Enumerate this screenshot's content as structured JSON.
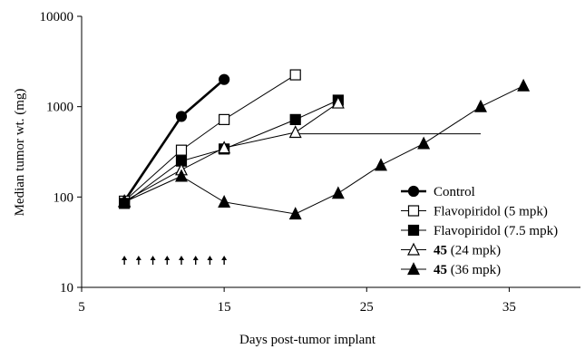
{
  "chart_data": {
    "type": "line",
    "title": "",
    "xlabel": "Days post-tumor implant",
    "ylabel": "Median tumor wt. (mg)",
    "xlim": [
      5,
      40
    ],
    "ylim": [
      10,
      10000
    ],
    "yscale": "log",
    "x_ticks": [
      "5",
      "15",
      "25",
      "35"
    ],
    "y_ticks": [
      "10",
      "100",
      "1000",
      "10000"
    ],
    "grid": false,
    "legend_position": "right",
    "series": [
      {
        "name": "Control",
        "bold_prefix": "",
        "rest": "Control",
        "marker": "circle",
        "fill": "#000000",
        "line_width": "thick",
        "points": [
          [
            8,
            90
          ],
          [
            12,
            780
          ],
          [
            15,
            2000
          ]
        ]
      },
      {
        "name": "Flavopiridol (5 mpk)",
        "bold_prefix": "",
        "rest": "Flavopiridol (5 mpk)",
        "marker": "square",
        "fill": "#ffffff",
        "line_width": "thin",
        "points": [
          [
            8,
            90
          ],
          [
            12,
            330
          ],
          [
            15,
            720
          ],
          [
            20,
            2250
          ]
        ]
      },
      {
        "name": "Flavopiridol (7.5 mpk)",
        "bold_prefix": "",
        "rest": "Flavopiridol (7.5 mpk)",
        "marker": "square",
        "fill": "#000000",
        "line_width": "thin",
        "points": [
          [
            8,
            85
          ],
          [
            12,
            250
          ],
          [
            15,
            340
          ],
          [
            20,
            720
          ],
          [
            23,
            1180
          ]
        ]
      },
      {
        "name": "45 (24 mpk)",
        "bold_prefix": "45",
        "rest": " (24 mpk)",
        "marker": "triangle",
        "fill": "#ffffff",
        "line_width": "thin",
        "points": [
          [
            8,
            90
          ],
          [
            12,
            200
          ],
          [
            15,
            350
          ],
          [
            20,
            520
          ],
          [
            23,
            1100
          ]
        ],
        "extension": [
          [
            20,
            500
          ],
          [
            33,
            500
          ]
        ]
      },
      {
        "name": "45 (36 mpk)",
        "bold_prefix": "45",
        "rest": " (36 mpk)",
        "marker": "triangle",
        "fill": "#000000",
        "line_width": "thin",
        "points": [
          [
            8,
            88
          ],
          [
            12,
            170
          ],
          [
            15,
            88
          ],
          [
            20,
            65
          ],
          [
            23,
            110
          ],
          [
            26,
            225
          ],
          [
            29,
            390
          ],
          [
            33,
            1000
          ],
          [
            36,
            1700
          ]
        ]
      }
    ],
    "dosing_arrows_x": [
      8,
      9,
      10,
      11,
      12,
      13,
      14,
      15
    ],
    "dosing_arrows_y": 20
  }
}
